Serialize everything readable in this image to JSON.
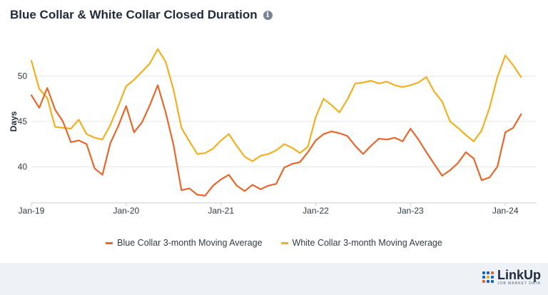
{
  "header": {
    "title": "Blue Collar & White Collar Closed Duration",
    "info_icon": "info-icon"
  },
  "brand": {
    "name": "LinkUp",
    "tagline": "JOB MARKET DATA",
    "colors": [
      "#1565c0",
      "#e8672a",
      "#f2b01e"
    ]
  },
  "chart_data": {
    "type": "line",
    "title": "Blue Collar & White Collar Closed Duration",
    "xlabel": "",
    "ylabel": "Days",
    "ylim": [
      36,
      54
    ],
    "yticks": [
      40,
      45,
      50
    ],
    "xlim": [
      2019,
      2024.33
    ],
    "xticks": [
      {
        "label": "Jan-19",
        "value": 2019
      },
      {
        "label": "Jan-20",
        "value": 2020
      },
      {
        "label": "Jan-21",
        "value": 2021
      },
      {
        "label": "Jan-22",
        "value": 2022
      },
      {
        "label": "Jan-23",
        "value": 2023
      },
      {
        "label": "Jan-24",
        "value": 2024
      }
    ],
    "grid": true,
    "legend_position": "bottom",
    "series": [
      {
        "name": "Blue Collar 3-month Moving Average",
        "color": "#e8672a",
        "x": [
          2019.0,
          2019.083,
          2019.167,
          2019.25,
          2019.333,
          2019.417,
          2019.5,
          2019.583,
          2019.667,
          2019.75,
          2019.833,
          2019.917,
          2020.0,
          2020.083,
          2020.167,
          2020.25,
          2020.333,
          2020.417,
          2020.5,
          2020.583,
          2020.667,
          2020.75,
          2020.833,
          2020.917,
          2021.0,
          2021.083,
          2021.167,
          2021.25,
          2021.333,
          2021.417,
          2021.5,
          2021.583,
          2021.667,
          2021.75,
          2021.833,
          2021.917,
          2022.0,
          2022.083,
          2022.167,
          2022.25,
          2022.333,
          2022.417,
          2022.5,
          2022.583,
          2022.667,
          2022.75,
          2022.833,
          2022.917,
          2023.0,
          2023.083,
          2023.167,
          2023.25,
          2023.333,
          2023.417,
          2023.5,
          2023.583,
          2023.667,
          2023.75,
          2023.833,
          2023.917,
          2024.0,
          2024.083,
          2024.167
        ],
        "y": [
          47.9,
          46.5,
          48.7,
          46.3,
          45.0,
          42.7,
          42.9,
          42.5,
          39.8,
          39.1,
          42.6,
          44.5,
          46.7,
          43.8,
          44.9,
          46.8,
          49.0,
          46.0,
          42.4,
          37.4,
          37.6,
          36.9,
          36.8,
          37.9,
          38.6,
          39.1,
          37.9,
          37.3,
          38.0,
          37.5,
          37.9,
          38.1,
          39.9,
          40.3,
          40.5,
          41.6,
          42.9,
          43.6,
          43.9,
          43.7,
          43.4,
          42.3,
          41.4,
          42.3,
          43.1,
          43.0,
          43.2,
          42.8,
          44.2,
          43.0,
          41.6,
          40.3,
          39.0,
          39.6,
          40.4,
          41.6,
          40.9,
          38.5,
          38.8,
          40.0,
          43.8,
          44.3,
          45.8
        ]
      },
      {
        "name": "White Collar 3-month Moving Average",
        "color": "#f2b01e",
        "x": [
          2019.0,
          2019.083,
          2019.167,
          2019.25,
          2019.333,
          2019.417,
          2019.5,
          2019.583,
          2019.667,
          2019.75,
          2019.833,
          2019.917,
          2020.0,
          2020.083,
          2020.167,
          2020.25,
          2020.333,
          2020.417,
          2020.5,
          2020.583,
          2020.667,
          2020.75,
          2020.833,
          2020.917,
          2021.0,
          2021.083,
          2021.167,
          2021.25,
          2021.333,
          2021.417,
          2021.5,
          2021.583,
          2021.667,
          2021.75,
          2021.833,
          2021.917,
          2022.0,
          2022.083,
          2022.167,
          2022.25,
          2022.333,
          2022.417,
          2022.5,
          2022.583,
          2022.667,
          2022.75,
          2022.833,
          2022.917,
          2023.0,
          2023.083,
          2023.167,
          2023.25,
          2023.333,
          2023.417,
          2023.5,
          2023.583,
          2023.667,
          2023.75,
          2023.833,
          2023.917,
          2024.0,
          2024.083,
          2024.167
        ],
        "y": [
          51.7,
          48.6,
          47.6,
          44.4,
          44.3,
          44.2,
          45.2,
          43.6,
          43.2,
          43.0,
          44.6,
          46.7,
          48.9,
          49.6,
          50.5,
          51.4,
          53.0,
          51.6,
          48.5,
          44.3,
          42.8,
          41.4,
          41.5,
          42.0,
          42.9,
          43.6,
          42.3,
          41.1,
          40.6,
          41.2,
          41.4,
          41.8,
          42.5,
          42.1,
          41.5,
          42.2,
          45.5,
          47.5,
          46.8,
          46.0,
          47.4,
          49.2,
          49.3,
          49.5,
          49.2,
          49.4,
          49.0,
          48.8,
          49.0,
          49.3,
          49.9,
          48.3,
          47.2,
          45.0,
          44.3,
          43.5,
          42.8,
          44.0,
          46.5,
          49.9,
          52.3,
          51.2,
          49.9
        ]
      }
    ]
  }
}
